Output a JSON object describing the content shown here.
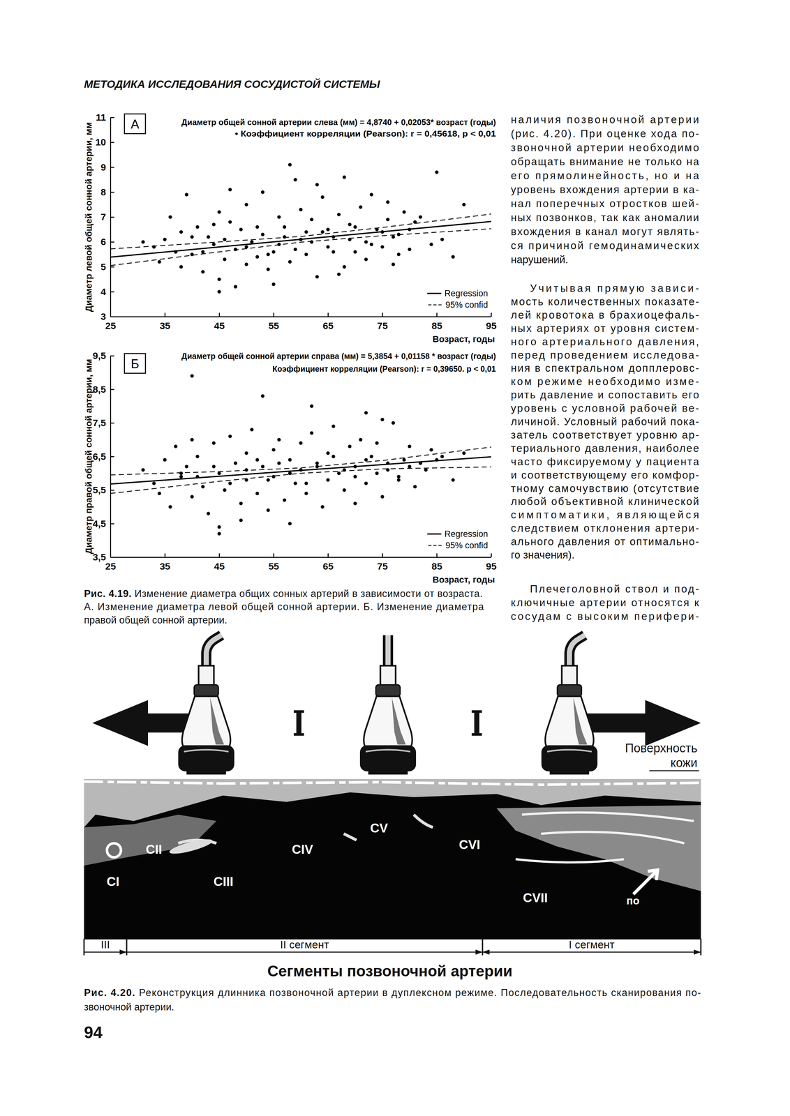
{
  "header": "МЕТОДИКА ИССЛЕДОВАНИЯ СОСУДИСТОЙ СИСТЕМЫ",
  "chart_data": [
    {
      "type": "scatter",
      "panel": "А",
      "title": "Диаметр общей сонной артерии слева (мм) = 4,8740 + 0,02053* возраст (годы)",
      "subtitle": "• Коэффициент корреляции (Pearson): r = 0,45618, p < 0,01",
      "x_label": "Возраст, годы",
      "y_label": "Диаметр левой общей сонной артерии, мм",
      "xlim": [
        25,
        95
      ],
      "xticks": [
        25,
        35,
        45,
        55,
        65,
        75,
        85,
        95
      ],
      "ylim": [
        3,
        11
      ],
      "yticks": [
        3,
        4,
        5,
        6,
        7,
        8,
        9,
        10,
        11
      ],
      "legend": "lower right",
      "series": [
        {
          "type": "scatter",
          "marker": "circle",
          "color": "#000000",
          "x": [
            31,
            33,
            34,
            35,
            36,
            37,
            38,
            38,
            39,
            40,
            41,
            42,
            43,
            44,
            45,
            45,
            46,
            47,
            48,
            48,
            49,
            50,
            50,
            51,
            52,
            53,
            53,
            54,
            55,
            56,
            56,
            57,
            58,
            59,
            60,
            60,
            61,
            62,
            63,
            64,
            64,
            65,
            66,
            67,
            68,
            68,
            69,
            70,
            71,
            72,
            72,
            73,
            74,
            75,
            76,
            76,
            77,
            78,
            79,
            80,
            81,
            82,
            84,
            86,
            88,
            90,
            45,
            58,
            47,
            55,
            63,
            67,
            85,
            40,
            42,
            44,
            46,
            50,
            52,
            54,
            57,
            59,
            61,
            62,
            65,
            66,
            69,
            70,
            73,
            75,
            77,
            78,
            80
          ],
          "values": [
            6.0,
            5.8,
            5.2,
            6.1,
            7.0,
            5.6,
            6.4,
            5.0,
            7.9,
            5.5,
            6.6,
            4.8,
            6.2,
            5.9,
            7.2,
            4.5,
            5.3,
            6.8,
            5.7,
            4.2,
            6.5,
            5.1,
            7.5,
            6.0,
            5.4,
            8.0,
            6.3,
            4.9,
            5.6,
            7.0,
            5.9,
            6.6,
            5.2,
            8.5,
            6.1,
            7.3,
            5.5,
            6.9,
            4.6,
            6.4,
            7.8,
            5.8,
            6.2,
            7.1,
            5.0,
            8.6,
            6.7,
            5.6,
            7.4,
            6.0,
            5.3,
            7.9,
            6.5,
            5.8,
            6.9,
            7.6,
            5.1,
            6.3,
            7.2,
            5.7,
            6.8,
            7.0,
            5.9,
            6.1,
            5.4,
            7.5,
            4.0,
            9.1,
            8.1,
            4.3,
            8.3,
            4.7,
            8.8,
            6.2,
            5.6,
            6.7,
            6.1,
            5.8,
            6.6,
            5.5,
            6.2,
            5.7,
            6.4,
            6.0,
            6.5,
            5.6,
            6.1,
            6.6,
            5.9,
            6.4,
            6.2,
            5.5,
            6.5
          ]
        },
        {
          "name": "Regression",
          "type": "line",
          "line_style": "solid",
          "color": "#000000",
          "x": [
            25,
            95
          ],
          "values": [
            5.39,
            6.82
          ]
        },
        {
          "name": "95% confid",
          "type": "line",
          "line_style": "dashed",
          "color": "#000000",
          "x": [
            25,
            45,
            60,
            75,
            95
          ],
          "values": [
            5.72,
            6.0,
            6.22,
            6.58,
            7.12
          ],
          "lower": [
            5.05,
            5.6,
            5.99,
            6.25,
            6.53
          ]
        }
      ]
    },
    {
      "type": "scatter",
      "panel": "Б",
      "title": "Диаметр общей сонной артерии справа (мм) = 5,3854 + 0,01158 * возраст (годы)",
      "subtitle": "Коэффициент корреляции (Pearson): r = 0,39650. p < 0,01",
      "x_label": "Возраст, годы",
      "y_label": "Диаметр правой общей сонной артерии, мм",
      "xlim": [
        25,
        95
      ],
      "xticks": [
        25,
        35,
        45,
        55,
        65,
        75,
        85,
        95
      ],
      "ylim": [
        3.5,
        9.5
      ],
      "yticks": [
        {
          "value": 3.5,
          "label": "3,5"
        },
        {
          "value": 4.5,
          "label": "4,5"
        },
        {
          "value": 5.5,
          "label": "5,5"
        },
        {
          "value": 6.5,
          "label": "6,5"
        },
        {
          "value": 7.5,
          "label": "7,5"
        },
        {
          "value": 8.5,
          "label": "8,5"
        },
        {
          "value": 9.5,
          "label": "9,5"
        }
      ],
      "legend": "lower right",
      "series": [
        {
          "type": "scatter",
          "marker": "circle",
          "color": "#000000",
          "x": [
            31,
            33,
            34,
            35,
            36,
            37,
            38,
            39,
            40,
            40,
            41,
            42,
            43,
            44,
            45,
            45,
            46,
            47,
            48,
            49,
            50,
            50,
            51,
            52,
            53,
            54,
            55,
            55,
            56,
            57,
            58,
            59,
            60,
            60,
            61,
            62,
            63,
            64,
            65,
            65,
            66,
            67,
            68,
            69,
            70,
            70,
            71,
            72,
            73,
            74,
            75,
            76,
            77,
            78,
            79,
            80,
            81,
            82,
            84,
            86,
            88,
            90,
            45,
            53,
            62,
            72,
            75,
            58,
            85,
            49,
            38,
            41,
            44,
            47,
            50,
            52,
            54,
            56,
            58,
            61,
            63,
            66,
            68,
            70,
            72,
            74,
            76,
            78,
            80,
            83,
            40
          ],
          "values": [
            6.1,
            5.7,
            5.4,
            6.4,
            5.0,
            6.8,
            5.9,
            6.2,
            5.3,
            7.0,
            6.5,
            5.6,
            4.8,
            6.9,
            6.0,
            4.4,
            5.5,
            7.1,
            6.3,
            5.1,
            6.6,
            5.8,
            7.3,
            5.4,
            6.2,
            4.9,
            6.7,
            5.9,
            7.0,
            5.2,
            6.4,
            5.7,
            6.9,
            6.1,
            5.4,
            7.2,
            6.3,
            5.0,
            6.6,
            5.8,
            7.4,
            6.0,
            5.5,
            6.8,
            6.2,
            5.1,
            7.0,
            5.7,
            6.5,
            6.9,
            5.3,
            6.1,
            7.5,
            5.9,
            6.4,
            6.8,
            5.6,
            6.3,
            6.7,
            6.5,
            5.8,
            6.6,
            4.2,
            8.3,
            8.0,
            7.8,
            7.6,
            4.5,
            6.4,
            4.6,
            6.0,
            5.9,
            6.2,
            5.7,
            6.1,
            6.4,
            5.8,
            6.3,
            6.0,
            5.7,
            6.2,
            6.5,
            6.1,
            5.9,
            6.4,
            6.0,
            6.3,
            5.8,
            6.2,
            6.1,
            8.9
          ]
        },
        {
          "name": "Regression",
          "type": "line",
          "line_style": "solid",
          "color": "#000000",
          "x": [
            25,
            95
          ],
          "values": [
            5.68,
            6.49
          ]
        },
        {
          "name": "95% confid",
          "type": "line",
          "line_style": "dashed",
          "color": "#000000",
          "x": [
            25,
            45,
            60,
            75,
            95
          ],
          "values": [
            5.95,
            6.05,
            6.16,
            6.38,
            6.78
          ],
          "lower": [
            5.4,
            5.76,
            6.0,
            6.13,
            6.19
          ]
        }
      ]
    }
  ],
  "figure_4_19_caption": {
    "label": "Рис. 4.19.",
    "lines": [
      "Изменение диаметра общих сонных артерий в зависимости от возраста.",
      "А. Изменение диаметра левой общей сонной артерии. Б. Изменение диаметра",
      "правой общей сонной артерии."
    ]
  },
  "body_text": {
    "paragraphs": [
      [
        "наличия позвоночной артерии",
        "(рис. 4.20). При оценке хода по-",
        "звоночной артерии необходимо",
        "обращать внимание не только на",
        "его прямолинейность, но и на",
        "уровень вхождения артерии в ка-",
        "нал поперечных отростков шей-",
        "ных позвонков, так как аномалии",
        "вхождения в канал могут являть-",
        "ся причиной гемодинамических",
        "нарушений."
      ],
      [
        "Учитывая прямую зависи-",
        "мость количественных показате-",
        "лей кровотока в брахиоцефаль-",
        "ных артериях от уровня систем-",
        "ного артериального давления,",
        "перед проведением исследова-",
        "ния в спектральном допплеровс-",
        "ком режиме необходимо изме-",
        "рить давление и сопоставить его",
        "уровень с условной рабочей ве-",
        "личиной. Условный рабочий пока-",
        "затель соответствует уровню ар-",
        "териального давления, наиболее",
        "часто фиксируемому у пациента",
        "и соответствующему его комфор-",
        "тному самочувствию (отсутствие",
        "любой объективной клинической",
        "симптоматики, являющейся",
        "следствием отклонения артери-",
        "ального давления от оптимально-",
        "го значения)."
      ],
      [
        "Плечеголовной ствол и под-",
        "ключичные артерии относятся к",
        "сосудам с высоким перифери-"
      ]
    ]
  },
  "figure_4_20": {
    "skin_label": [
      "Поверхность",
      "кожи"
    ],
    "vertebrae": [
      "CI",
      "CII",
      "CIII",
      "CIV",
      "CV",
      "CVI",
      "CVII"
    ],
    "fragment": "по",
    "segments": [
      "III",
      "II сегмент",
      "I сегмент"
    ],
    "title": "Сегменты позвоночной артерии",
    "caption": {
      "label": "Рис. 4.20.",
      "lines": [
        "Реконструкция длинника позвоночной артерии в дуплексном режиме. Последовательность сканирования по-",
        "звоночной артерии."
      ]
    }
  },
  "page_number": "94"
}
